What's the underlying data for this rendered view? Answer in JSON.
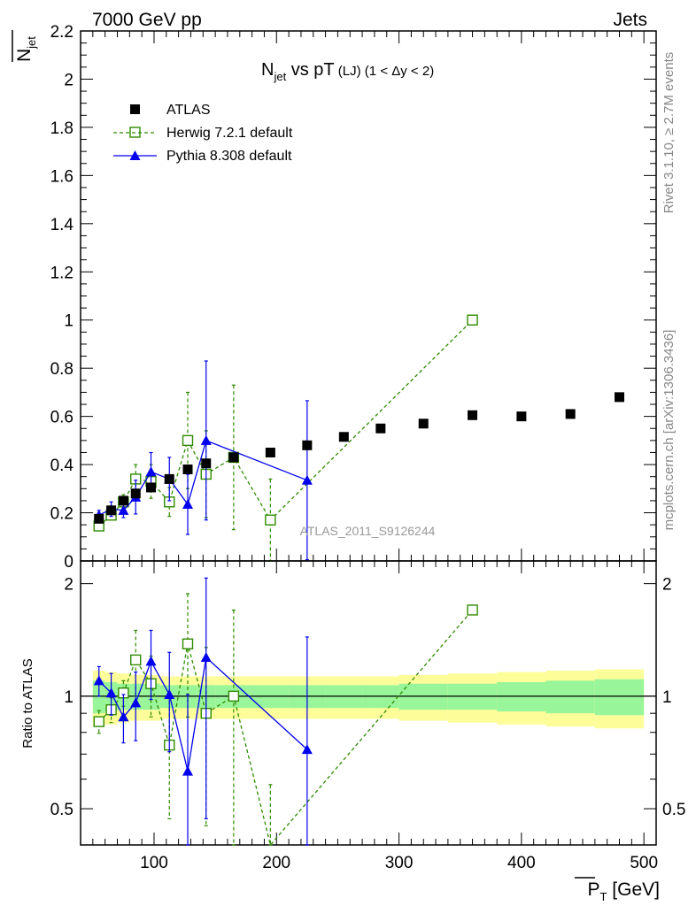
{
  "header": {
    "left": "7000 GeV pp",
    "right": "Jets"
  },
  "side_labels": {
    "rivet": "Rivet 3.1.10, ≥ 2.7M events",
    "mcplots": "mcplots.cern.ch [arXiv:1306.3436]"
  },
  "watermark": "ATLAS_2011_S9126244",
  "legend": {
    "atlas": "ATLAS",
    "herwig": "Herwig 7.2.1 default",
    "pythia": "Pythia 8.308 default"
  },
  "colors": {
    "atlas": "#000000",
    "herwig": "#2e8b00",
    "pythia": "#0000ee",
    "band_inner": "#99f599",
    "band_outer": "#fdfd99"
  },
  "chart_data": [
    {
      "type": "line",
      "title_main": "N",
      "title_sub": "jet",
      "title_rest": " vs pT",
      "title_small": " (LJ)  (1 < Δy < 2)",
      "ylabel_main": "N",
      "ylabel_sub": "jet",
      "xlim": [
        40,
        510
      ],
      "ylim": [
        0,
        2.2
      ],
      "yticks": [
        0,
        0.2,
        0.4,
        0.6,
        0.8,
        1,
        1.2,
        1.4,
        1.6,
        1.8,
        2,
        2.2
      ],
      "ytick_labels": [
        "0",
        "0.2",
        "0.4",
        "0.6",
        "0.8",
        "1",
        "1.2",
        "1.4",
        "1.6",
        "1.8",
        "2",
        "2.2"
      ],
      "series": [
        {
          "name": "ATLAS",
          "x": [
            55,
            65,
            75,
            85,
            97.5,
            112.5,
            127.5,
            142.5,
            165,
            195,
            225,
            255,
            285,
            320,
            360,
            400,
            440,
            480
          ],
          "y": [
            0.175,
            0.21,
            0.25,
            0.28,
            0.305,
            0.34,
            0.38,
            0.405,
            0.43,
            0.45,
            0.48,
            0.515,
            0.55,
            0.57,
            0.605,
            0.6,
            0.61,
            0.68
          ]
        },
        {
          "name": "Herwig 7.2.1 default",
          "x": [
            55,
            65,
            75,
            85,
            97.5,
            112.5,
            127.5,
            142.5,
            165,
            195,
            360
          ],
          "y": [
            0.145,
            0.19,
            0.245,
            0.34,
            0.33,
            0.245,
            0.5,
            0.36,
            0.43,
            0.17,
            1.0
          ],
          "err": [
            0.02,
            0.02,
            0.03,
            0.06,
            0.07,
            0.06,
            0.2,
            0.18,
            0.3,
            0.17,
            0
          ],
          "err_lo": [
            0.02,
            0.02,
            0.03,
            0.06,
            0.07,
            0.06,
            0.2,
            0.18,
            0.3,
            0.3,
            0
          ]
        },
        {
          "name": "Pythia 8.308 default",
          "x": [
            55,
            65,
            75,
            85,
            97.5,
            112.5,
            127.5,
            142.5,
            225
          ],
          "y": [
            0.19,
            0.215,
            0.21,
            0.265,
            0.37,
            0.34,
            0.235,
            0.5,
            0.335
          ],
          "err": [
            0.02,
            0.03,
            0.03,
            0.07,
            0.08,
            0.09,
            0.125,
            0.33,
            0.33
          ]
        }
      ]
    },
    {
      "type": "line",
      "ylabel": "Ratio to ATLAS",
      "xlabel_main": "P",
      "xlabel_sub": "T",
      "xlabel_unit": " [GeV]",
      "xlim": [
        40,
        510
      ],
      "ylim": [
        0.4,
        2.3
      ],
      "log_y": true,
      "xticks": [
        100,
        200,
        300,
        400,
        500
      ],
      "xtick_labels": [
        "100",
        "200",
        "300",
        "400",
        "500"
      ],
      "yticks": [
        0.5,
        1,
        2
      ],
      "ytick_labels": [
        "0.5",
        "1",
        "2"
      ],
      "band_edges": [
        50,
        60,
        70,
        80,
        90,
        105,
        120,
        135,
        150,
        180,
        210,
        240,
        270,
        300,
        340,
        380,
        420,
        460,
        500
      ],
      "band_inner": [
        0.1,
        0.09,
        0.08,
        0.08,
        0.08,
        0.07,
        0.07,
        0.07,
        0.07,
        0.07,
        0.07,
        0.07,
        0.07,
        0.08,
        0.08,
        0.09,
        0.1,
        0.11
      ],
      "band_outer": [
        0.17,
        0.16,
        0.15,
        0.14,
        0.14,
        0.13,
        0.13,
        0.13,
        0.13,
        0.13,
        0.13,
        0.13,
        0.13,
        0.14,
        0.15,
        0.16,
        0.17,
        0.18
      ],
      "series": [
        {
          "name": "Herwig 7.2.1 default",
          "x": [
            55,
            65,
            75,
            85,
            97.5,
            112.5,
            127.5,
            142.5,
            165,
            195,
            360
          ],
          "y": [
            0.855,
            0.92,
            1.02,
            1.25,
            1.08,
            0.74,
            1.38,
            0.9,
            1.0,
            0.3,
            1.7
          ],
          "err": [
            0.06,
            0.07,
            0.08,
            0.25,
            0.2,
            0.27,
            0.5,
            0.45,
            0.7,
            0.28,
            0
          ],
          "err_lo": [
            0.06,
            0.07,
            0.08,
            0.25,
            0.2,
            0.27,
            0.5,
            0.45,
            0.6,
            0.28,
            0
          ]
        },
        {
          "name": "Pythia 8.308 default",
          "x": [
            55,
            65,
            75,
            85,
            97.5,
            112.5,
            127.5,
            142.5,
            225
          ],
          "y": [
            1.1,
            1.02,
            0.88,
            0.96,
            1.24,
            1.01,
            0.63,
            1.27,
            0.72
          ],
          "err": [
            0.1,
            0.13,
            0.13,
            0.2,
            0.26,
            0.3,
            0.38,
            0.8,
            0.72
          ]
        }
      ]
    }
  ]
}
